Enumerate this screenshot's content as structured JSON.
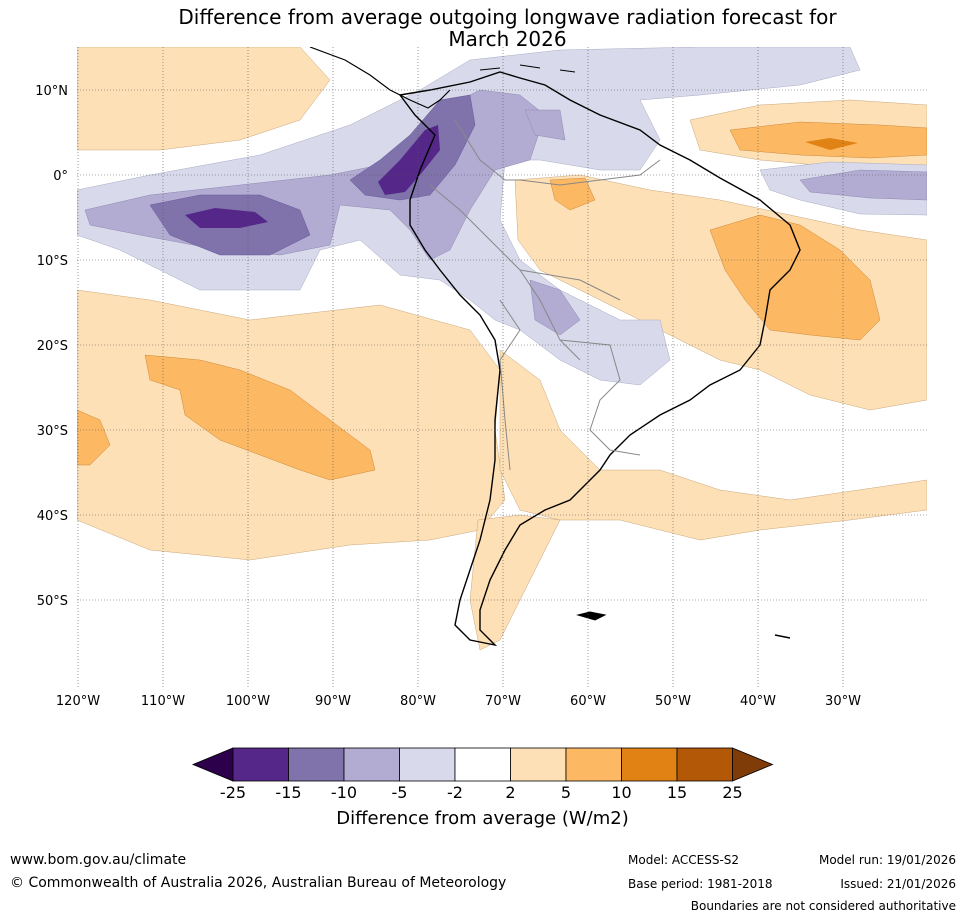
{
  "title_line1": "Difference from average outgoing longwave radiation forecast for",
  "title_line2": "March 2026",
  "lat_labels": [
    "10°N",
    "0°",
    "10°S",
    "20°S",
    "30°S",
    "40°S",
    "50°S"
  ],
  "lon_labels": [
    "120°W",
    "110°W",
    "100°W",
    "90°W",
    "80°W",
    "70°W",
    "60°W",
    "50°W",
    "40°W",
    "30°W"
  ],
  "colorbar": {
    "title": "Difference from average (W/m2)",
    "ticks": [
      "-25",
      "-15",
      "-10",
      "-5",
      "-2",
      "2",
      "5",
      "10",
      "15",
      "25"
    ],
    "colors": [
      "#2d004b",
      "#542788",
      "#8073ac",
      "#b2abd2",
      "#d8daeb",
      "#ffffff",
      "#fee0b6",
      "#fdb863",
      "#e08214",
      "#b35806",
      "#7f3b08"
    ]
  },
  "footer": {
    "url": "www.bom.gov.au/climate",
    "copyright": "© Commonwealth of Australia 2026, Australian Bureau of Meteorology",
    "model": "Model: ACCESS-S2",
    "base_period": "Base period: 1981-2018",
    "model_run": "Model run: 19/01/2026",
    "issued": "Issued: 21/01/2026",
    "disclaimer": "Boundaries are not considered authoritative"
  }
}
